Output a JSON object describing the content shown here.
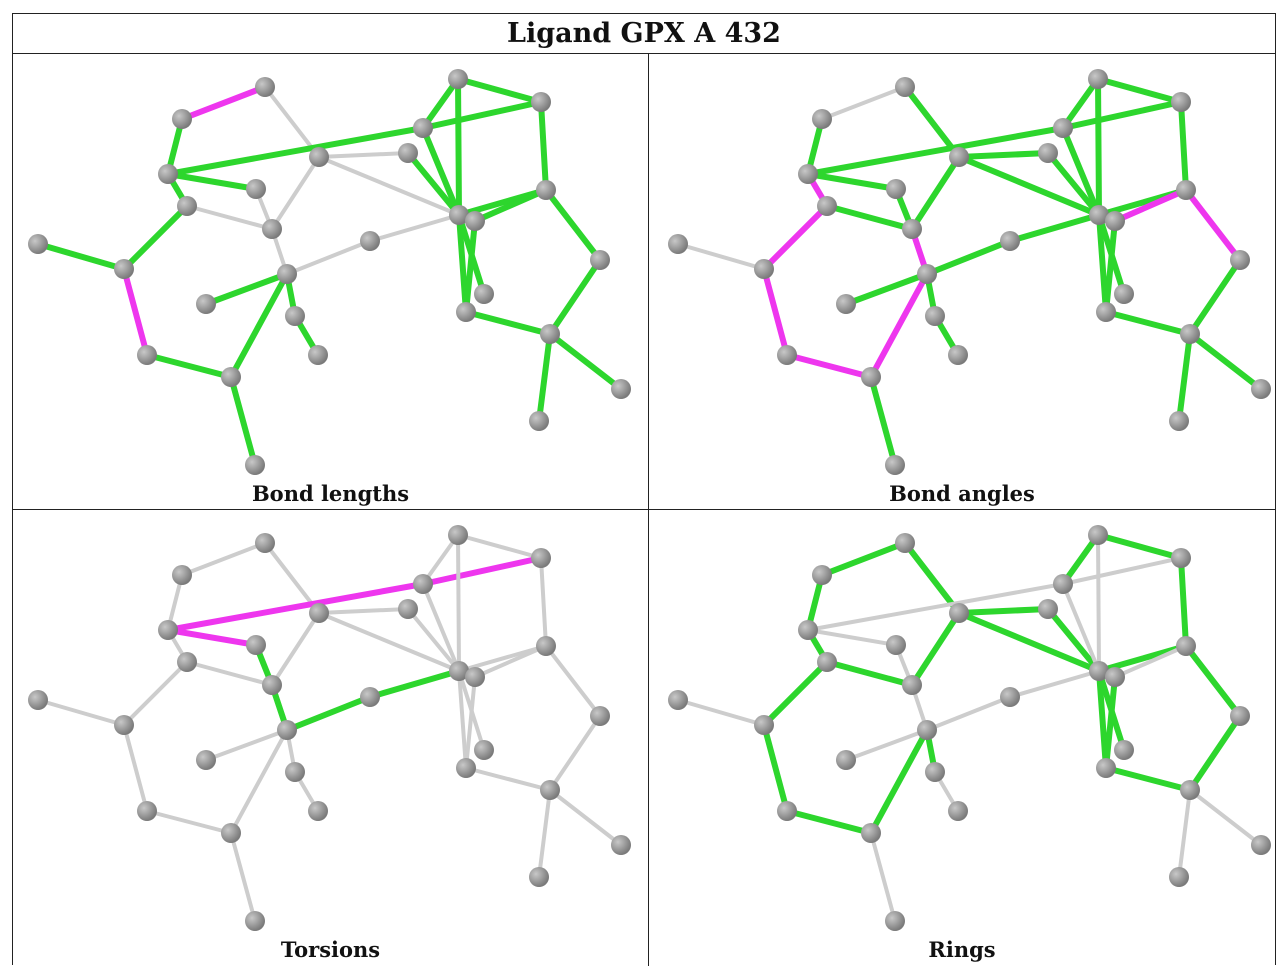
{
  "title": "Ligand GPX A 432",
  "panels": [
    {
      "caption": "Bond lengths"
    },
    {
      "caption": "Bond angles"
    },
    {
      "caption": "Torsions"
    },
    {
      "caption": "Rings"
    }
  ],
  "colors": {
    "normal": "#2dd62d",
    "outlier": "#ee36ee",
    "inactive": "#cdcdcd",
    "atom": "#7a7a7a"
  }
}
